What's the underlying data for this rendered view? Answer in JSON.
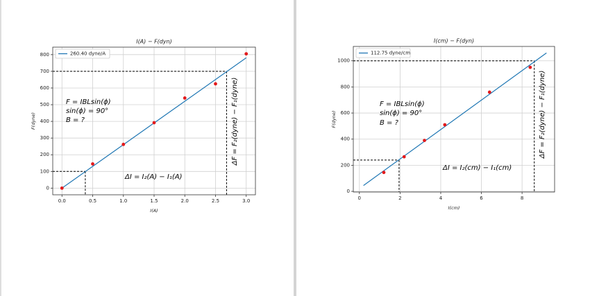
{
  "chart_data": [
    {
      "type": "scatter",
      "title": "I(A) − F(dyn)",
      "x_label": "I(A)",
      "y_label": "F(dyne)",
      "xlim": [
        -0.15,
        3.15
      ],
      "ylim": [
        -40,
        845
      ],
      "xticks": [
        {
          "value": 0,
          "label": "0.0"
        },
        0.5,
        {
          "value": 1,
          "label": "1.0"
        },
        1.5,
        {
          "value": 2,
          "label": "2.0"
        },
        2.5,
        {
          "value": 3,
          "label": "3.0"
        }
      ],
      "yticks": [
        0,
        100,
        200,
        300,
        400,
        500,
        600,
        700,
        800
      ],
      "grid": true,
      "legend": "upper-left",
      "series": [
        {
          "name": "260.40 dyne/A",
          "type": "line",
          "color": "#1f77b4",
          "x": [
            0,
            3
          ],
          "values": [
            0,
            781
          ]
        },
        {
          "type": "scatter",
          "color": "#e31a1c",
          "x": [
            0,
            0.5,
            1,
            1.5,
            2,
            2.5,
            3
          ],
          "values": [
            0,
            145,
            262,
            392,
            540,
            625,
            805
          ]
        }
      ],
      "reference_lines": [
        {
          "x": 0.38,
          "y": 100
        },
        {
          "x": 2.68,
          "y": 700
        }
      ],
      "annotations": [
        "F = IBLsin(ϕ)",
        "sin(ϕ) = 90°",
        "B = ?",
        "ΔI = I₂(A) − I₁(A)",
        "ΔF = F₂(dyne) − F₁(dyne)"
      ]
    },
    {
      "type": "scatter",
      "title": "I(cm) − F(dyn)",
      "x_label": "I(cm)",
      "y_label": "F(dyne)",
      "xlim": [
        -0.3,
        9.6
      ],
      "ylim": [
        -5,
        1110
      ],
      "xticks": [
        0,
        2,
        4,
        6,
        8
      ],
      "yticks": [
        0,
        200,
        400,
        600,
        800,
        1000
      ],
      "grid": true,
      "legend": "upper-left",
      "series": [
        {
          "name": "112.75 dyne/cm",
          "type": "line",
          "color": "#1f77b4",
          "x": [
            0.2,
            9.2
          ],
          "values": [
            45,
            1060
          ]
        },
        {
          "type": "scatter",
          "color": "#e31a1c",
          "x": [
            1.2,
            2.2,
            3.2,
            4.2,
            6.4,
            8.4
          ],
          "values": [
            145,
            265,
            390,
            510,
            760,
            950
          ]
        }
      ],
      "reference_lines": [
        {
          "x": 1.95,
          "y": 240
        },
        {
          "x": 8.6,
          "y": 1000
        }
      ],
      "annotations": [
        "F = IBLsin(ϕ)",
        "sin(ϕ) = 90°",
        "B = ?",
        "ΔI = I₂(cm) − I₁(cm)",
        "ΔF = F₂(dyne) − F₁(dyne)"
      ]
    }
  ]
}
